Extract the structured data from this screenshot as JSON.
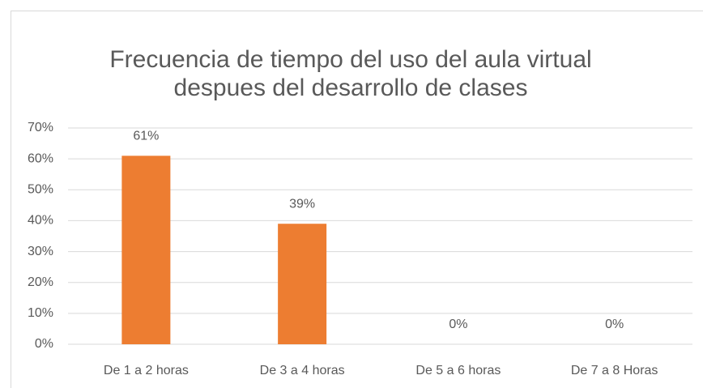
{
  "chart_data": {
    "type": "bar",
    "title": [
      "Frecuencia de tiempo del uso del aula virtual",
      "despues del desarrollo de clases"
    ],
    "categories": [
      "De 1 a 2 horas",
      "De 3 a 4 horas",
      "De 5 a 6 horas",
      "De 7 a 8 Horas"
    ],
    "values": [
      61,
      39,
      0,
      0
    ],
    "value_labels": [
      "61%",
      "39%",
      "0%",
      "0%"
    ],
    "color": "#ed7d31",
    "ylim": [
      0,
      70
    ],
    "yticks": [
      {
        "value": 0,
        "label": "0%"
      },
      {
        "value": 10,
        "label": "10%"
      },
      {
        "value": 20,
        "label": "20%"
      },
      {
        "value": 30,
        "label": "30%"
      },
      {
        "value": 40,
        "label": "40%"
      },
      {
        "value": 50,
        "label": "50%"
      },
      {
        "value": 60,
        "label": "60%"
      },
      {
        "value": 70,
        "label": "70%"
      }
    ],
    "grid": true
  }
}
